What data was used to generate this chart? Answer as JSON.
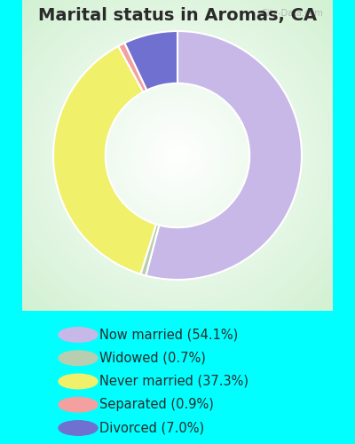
{
  "title": "Marital status in Aromas, CA",
  "slices": [
    {
      "label": "Now married (54.1%)",
      "value": 54.1,
      "color": "#c8b8e8"
    },
    {
      "label": "Widowed (0.7%)",
      "value": 0.7,
      "color": "#b8ceb0"
    },
    {
      "label": "Never married (37.3%)",
      "value": 37.3,
      "color": "#f0f06a"
    },
    {
      "label": "Separated (0.9%)",
      "value": 0.9,
      "color": "#f4a0a0"
    },
    {
      "label": "Divorced (7.0%)",
      "value": 7.0,
      "color": "#7070d0"
    }
  ],
  "bg_outer": "#00ffff",
  "bg_chart_center": "#ffffff",
  "bg_chart_edge": "#c8e8c8",
  "title_color": "#2a2a2a",
  "title_fontsize": 14,
  "legend_fontsize": 10.5,
  "startangle": 90,
  "watermark": "City-Data.com"
}
